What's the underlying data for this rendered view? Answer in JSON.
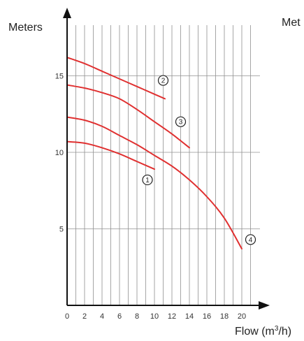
{
  "chart_data": {
    "type": "line",
    "xlabel": "Flow (m",
    "xlabel_sup": "3",
    "xlabel_tail": "/h)",
    "ylabel": "Meters",
    "ylabel_clipped": "Met",
    "xlim": [
      0,
      22
    ],
    "ylim": [
      0,
      18
    ],
    "x_ticks": [
      "0",
      "2",
      "4",
      "6",
      "8",
      "10",
      "12",
      "14",
      "16",
      "18",
      "20"
    ],
    "y_ticks": [
      "5",
      "10",
      "15"
    ],
    "grid": true,
    "colors": {
      "curve": "#e03030",
      "grid": "#909090",
      "axis": "#111111"
    },
    "series": [
      {
        "marker": "1",
        "marker_at": [
          9.2,
          8.2
        ],
        "x": [
          0,
          2,
          4,
          6,
          8,
          10
        ],
        "y": [
          10.7,
          10.6,
          10.3,
          9.9,
          9.4,
          8.9
        ]
      },
      {
        "marker": "2",
        "marker_at": [
          11.0,
          14.7
        ],
        "x": [
          0,
          2,
          4,
          6,
          8,
          10,
          11.2
        ],
        "y": [
          16.2,
          15.8,
          15.3,
          14.8,
          14.3,
          13.8,
          13.5
        ]
      },
      {
        "marker": "3",
        "marker_at": [
          13.0,
          12.0
        ],
        "x": [
          0,
          2,
          4,
          6,
          8,
          10,
          12,
          14
        ],
        "y": [
          14.4,
          14.2,
          13.9,
          13.5,
          12.8,
          12.0,
          11.2,
          10.3
        ]
      },
      {
        "marker": "4",
        "marker_at": [
          21.0,
          4.3
        ],
        "x": [
          0,
          2,
          4,
          6,
          8,
          10,
          12,
          14,
          16,
          18,
          20
        ],
        "y": [
          12.3,
          12.1,
          11.7,
          11.1,
          10.5,
          9.8,
          9.1,
          8.2,
          7.1,
          5.7,
          3.7
        ]
      }
    ]
  }
}
